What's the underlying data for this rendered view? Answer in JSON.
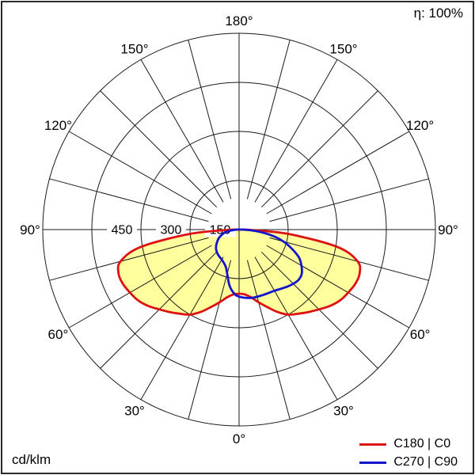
{
  "header": {
    "efficiency": "η: 100%"
  },
  "footer": {
    "unit": "cd/klm"
  },
  "legend": {
    "items": [
      {
        "label": "C180 | C0",
        "color": "#dd1111"
      },
      {
        "label": "C270 | C90",
        "color": "#1414cc"
      }
    ]
  },
  "chart_data": {
    "type": "polar",
    "subtype": "luminous-intensity-distribution",
    "unit": "cd/klm",
    "efficiency_label": "η: 100%",
    "gamma_convention": "0 = nadir (bottom), negative = left half of diagram, values in cd/klm",
    "grid": {
      "angle_step_deg": 15,
      "angle_labels_deg": [
        0,
        30,
        60,
        90,
        120,
        150,
        180
      ],
      "ring_values": [
        150,
        300,
        450,
        600
      ],
      "labeled_rings": [
        450,
        300,
        150
      ],
      "color": "#1a1a1a"
    },
    "series": [
      {
        "name": "C180 | C0",
        "color": "#dd1111",
        "fill": "#ffff9e",
        "points_gamma_value": [
          [
            -90,
            20
          ],
          [
            -85,
            150
          ],
          [
            -80,
            305
          ],
          [
            -75,
            375
          ],
          [
            -70,
            392
          ],
          [
            -65,
            392
          ],
          [
            -60,
            385
          ],
          [
            -55,
            377
          ],
          [
            -50,
            363
          ],
          [
            -45,
            345
          ],
          [
            -40,
            329
          ],
          [
            -35,
            314
          ],
          [
            -30,
            300
          ],
          [
            -25,
            278
          ],
          [
            -20,
            252
          ],
          [
            -15,
            230
          ],
          [
            -10,
            210
          ],
          [
            -5,
            199
          ],
          [
            0,
            196
          ],
          [
            5,
            199
          ],
          [
            10,
            210
          ],
          [
            15,
            230
          ],
          [
            20,
            252
          ],
          [
            25,
            278
          ],
          [
            30,
            300
          ],
          [
            35,
            314
          ],
          [
            40,
            329
          ],
          [
            45,
            345
          ],
          [
            50,
            363
          ],
          [
            55,
            377
          ],
          [
            60,
            385
          ],
          [
            65,
            392
          ],
          [
            70,
            392
          ],
          [
            75,
            375
          ],
          [
            80,
            305
          ],
          [
            85,
            150
          ],
          [
            90,
            20
          ]
        ]
      },
      {
        "name": "C270 | C90",
        "color": "#1414cc",
        "fill": null,
        "points_gamma_value": [
          [
            -90,
            10
          ],
          [
            -80,
            40
          ],
          [
            -70,
            62
          ],
          [
            -60,
            78
          ],
          [
            -50,
            92
          ],
          [
            -40,
            100
          ],
          [
            -30,
            106
          ],
          [
            -20,
            120
          ],
          [
            -15,
            140
          ],
          [
            -10,
            172
          ],
          [
            -5,
            194
          ],
          [
            0,
            205
          ],
          [
            10,
            212
          ],
          [
            20,
            213
          ],
          [
            30,
            216
          ],
          [
            40,
            228
          ],
          [
            45,
            234
          ],
          [
            50,
            238
          ],
          [
            55,
            234
          ],
          [
            60,
            220
          ],
          [
            65,
            202
          ],
          [
            70,
            172
          ],
          [
            75,
            140
          ],
          [
            80,
            100
          ],
          [
            85,
            52
          ],
          [
            90,
            12
          ]
        ]
      }
    ]
  }
}
